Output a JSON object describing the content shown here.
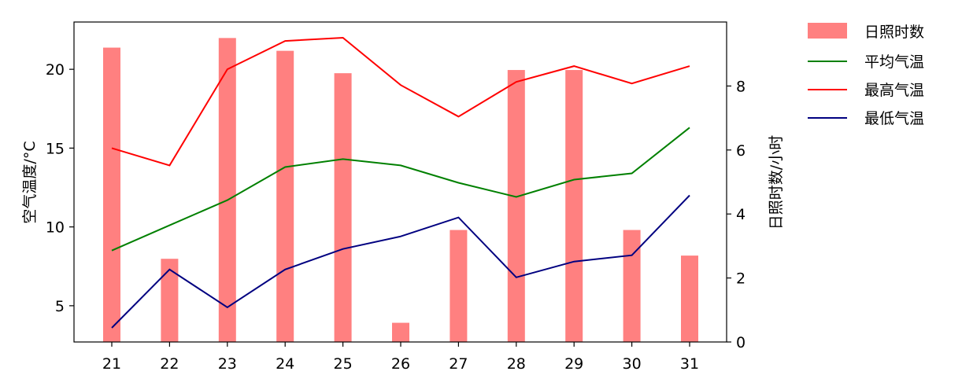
{
  "chart_data": {
    "type": "bar+line",
    "categories": [
      "21",
      "22",
      "23",
      "24",
      "25",
      "26",
      "27",
      "28",
      "29",
      "30",
      "31"
    ],
    "title": "",
    "xlabel": "",
    "ylabel_left": "空气温度/°C",
    "ylabel_right": "日照时数/小时",
    "ylim_left": [
      2.7,
      23.0
    ],
    "ylim_right": [
      0,
      10
    ],
    "yticks_left": [
      5,
      10,
      15,
      20
    ],
    "yticks_right": [
      0,
      2,
      4,
      6,
      8
    ],
    "grid": false,
    "legend_position": "outside-top-right",
    "bars": {
      "name": "日照时数",
      "axis": "right",
      "color": "#ff8080",
      "values": [
        9.2,
        2.6,
        9.5,
        9.1,
        8.4,
        0.6,
        3.5,
        8.5,
        8.5,
        3.5,
        2.7
      ]
    },
    "series": [
      {
        "name": "平均气温",
        "axis": "left",
        "color": "#008000",
        "values": [
          8.5,
          10.1,
          11.7,
          13.8,
          14.3,
          13.9,
          12.8,
          11.9,
          13.0,
          13.4,
          16.3
        ]
      },
      {
        "name": "最高气温",
        "axis": "left",
        "color": "#ff0000",
        "values": [
          15.0,
          13.9,
          20.0,
          21.8,
          22.0,
          19.0,
          17.0,
          19.2,
          20.2,
          19.1,
          20.2
        ]
      },
      {
        "name": "最低气温",
        "axis": "left",
        "color": "#000080",
        "values": [
          3.6,
          7.3,
          4.9,
          7.3,
          8.6,
          9.4,
          10.6,
          6.8,
          7.8,
          8.2,
          12.0
        ]
      }
    ]
  }
}
